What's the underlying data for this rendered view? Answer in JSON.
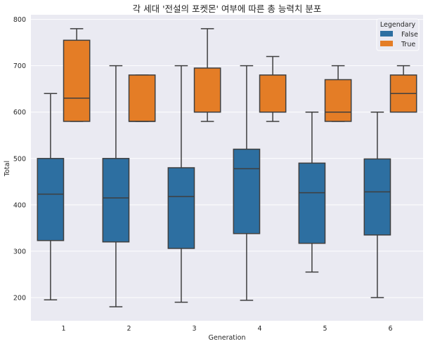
{
  "chart_data": {
    "type": "boxplot",
    "title": "각 세대 '전설의 포켓몬' 여부에 따른 총 능력치 분포",
    "xlabel": "Generation",
    "ylabel": "Total",
    "categories": [
      "1",
      "2",
      "3",
      "4",
      "5",
      "6"
    ],
    "ylim": [
      150,
      810
    ],
    "yticks": [
      200,
      300,
      400,
      500,
      600,
      700,
      800
    ],
    "grid": true,
    "legend": {
      "title": "Legendary",
      "placement": "top-right",
      "entries": [
        {
          "label": "False",
          "color": "#2d6fa1"
        },
        {
          "label": "True",
          "color": "#e47d26"
        }
      ]
    },
    "series": [
      {
        "name": "False",
        "color": "#2d6fa1",
        "boxes": [
          {
            "whislo": 195,
            "q1": 323,
            "med": 423,
            "q3": 500,
            "whishi": 640
          },
          {
            "whislo": 180,
            "q1": 320,
            "med": 415,
            "q3": 500,
            "whishi": 700
          },
          {
            "whislo": 190,
            "q1": 306,
            "med": 418,
            "q3": 480,
            "whishi": 700
          },
          {
            "whislo": 194,
            "q1": 338,
            "med": 478,
            "q3": 520,
            "whishi": 700
          },
          {
            "whislo": 255,
            "q1": 317,
            "med": 426,
            "q3": 490,
            "whishi": 600
          },
          {
            "whislo": 200,
            "q1": 335,
            "med": 428,
            "q3": 499,
            "whishi": 600
          }
        ]
      },
      {
        "name": "True",
        "color": "#e47d26",
        "boxes": [
          {
            "whislo": 580,
            "q1": 580,
            "med": 630,
            "q3": 755,
            "whishi": 780
          },
          {
            "whislo": 580,
            "q1": 580,
            "med": 580,
            "q3": 680,
            "whishi": 680
          },
          {
            "whislo": 580,
            "q1": 600,
            "med": 600,
            "q3": 695,
            "whishi": 780
          },
          {
            "whislo": 580,
            "q1": 600,
            "med": 600,
            "q3": 680,
            "whishi": 720
          },
          {
            "whislo": 580,
            "q1": 580,
            "med": 600,
            "q3": 670,
            "whishi": 700
          },
          {
            "whislo": 600,
            "q1": 600,
            "med": 640,
            "q3": 680,
            "whishi": 700
          }
        ]
      }
    ]
  }
}
